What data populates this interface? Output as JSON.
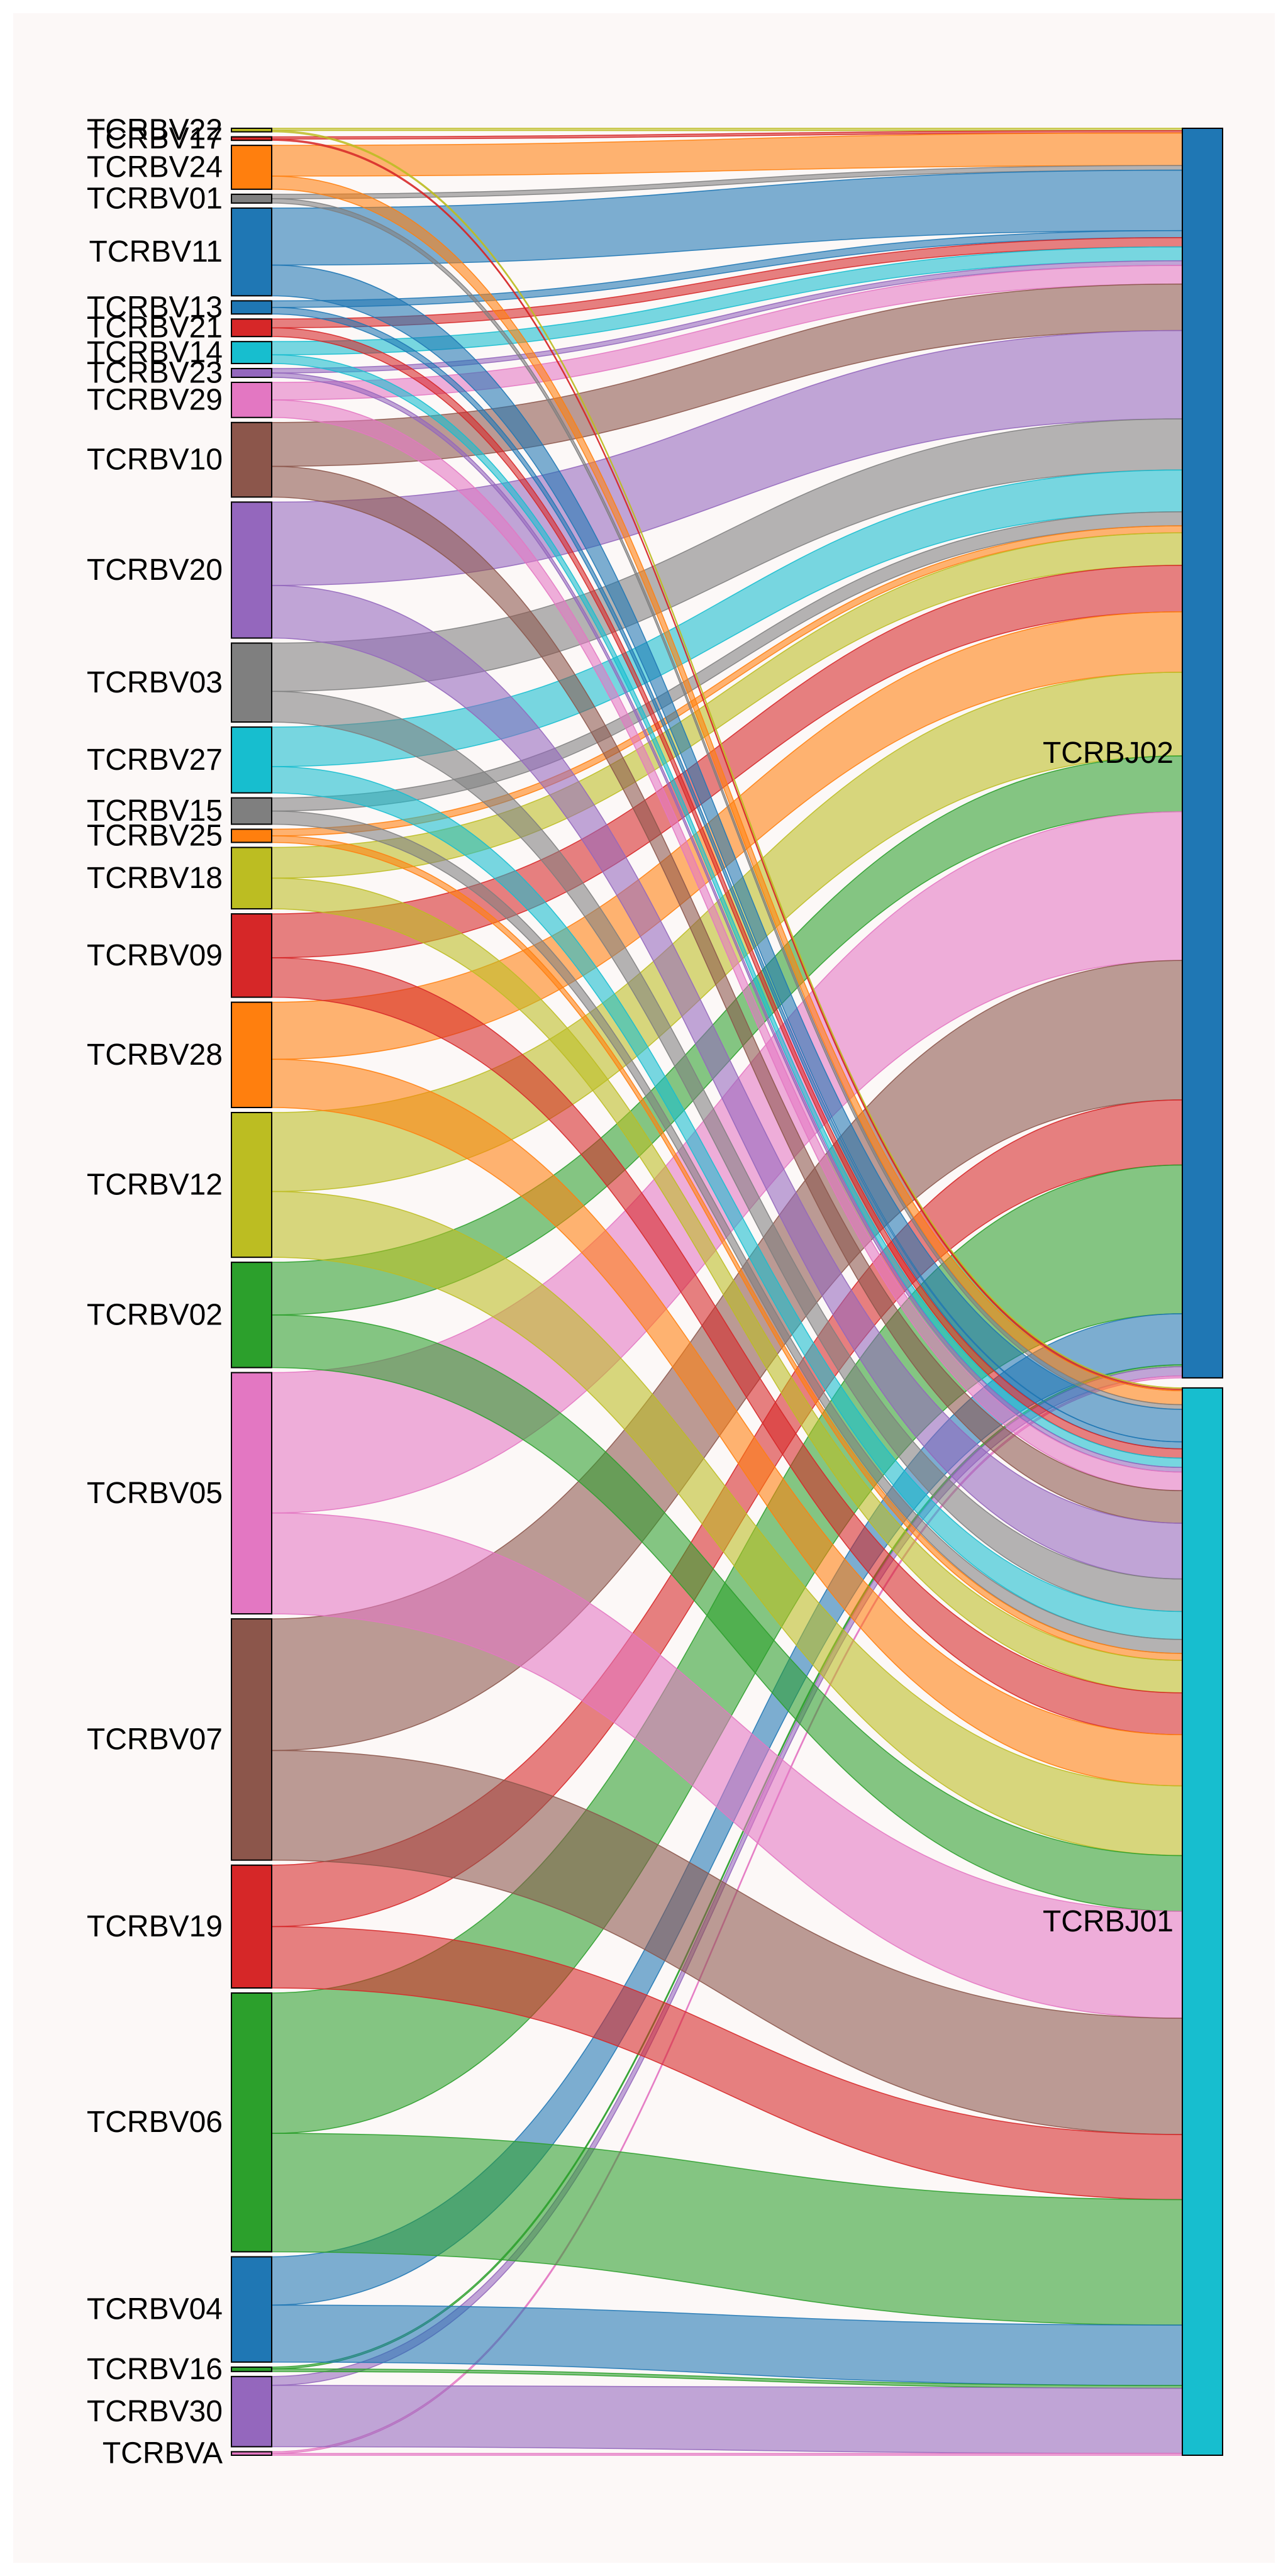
{
  "diagram": {
    "type": "sankey",
    "background": "#fcf8f7",
    "left_nodes": [
      {
        "label": "TCRBV22",
        "color": "#bcbd22",
        "value": 0.8
      },
      {
        "label": "TCRBV17",
        "color": "#d62728",
        "value": 0.8
      },
      {
        "label": "TCRBV24",
        "color": "#ff7f0e",
        "value": 10
      },
      {
        "label": "TCRBV01",
        "color": "#7f7f7f",
        "value": 2
      },
      {
        "label": "TCRBV11",
        "color": "#1f77b4",
        "value": 20
      },
      {
        "label": "TCRBV13",
        "color": "#1f77b4",
        "value": 3
      },
      {
        "label": "TCRBV21",
        "color": "#d62728",
        "value": 4
      },
      {
        "label": "TCRBV14",
        "color": "#17becf",
        "value": 5
      },
      {
        "label": "TCRBV23",
        "color": "#9467bd",
        "value": 2
      },
      {
        "label": "TCRBV29",
        "color": "#e377c2",
        "value": 8
      },
      {
        "label": "TCRBV10",
        "color": "#8c564b",
        "value": 17
      },
      {
        "label": "TCRBV20",
        "color": "#9467bd",
        "value": 31
      },
      {
        "label": "TCRBV03",
        "color": "#7f7f7f",
        "value": 18
      },
      {
        "label": "TCRBV27",
        "color": "#17becf",
        "value": 15
      },
      {
        "label": "TCRBV15",
        "color": "#7f7f7f",
        "value": 6
      },
      {
        "label": "TCRBV25",
        "color": "#ff7f0e",
        "value": 3
      },
      {
        "label": "TCRBV18",
        "color": "#bcbd22",
        "value": 14
      },
      {
        "label": "TCRBV09",
        "color": "#d62728",
        "value": 19
      },
      {
        "label": "TCRBV28",
        "color": "#ff7f0e",
        "value": 24
      },
      {
        "label": "TCRBV12",
        "color": "#bcbd22",
        "value": 33
      },
      {
        "label": "TCRBV02",
        "color": "#2ca02c",
        "value": 24
      },
      {
        "label": "TCRBV05",
        "color": "#e377c2",
        "value": 55
      },
      {
        "label": "TCRBV07",
        "color": "#8c564b",
        "value": 55
      },
      {
        "label": "TCRBV19",
        "color": "#d62728",
        "value": 28
      },
      {
        "label": "TCRBV06",
        "color": "#2ca02c",
        "value": 59
      },
      {
        "label": "TCRBV04",
        "color": "#1f77b4",
        "value": 24
      },
      {
        "label": "TCRBV16",
        "color": "#2ca02c",
        "value": 1
      },
      {
        "label": "TCRBV30",
        "color": "#9467bd",
        "value": 16
      },
      {
        "label": "TCRBVA",
        "color": "#e377c2",
        "value": 0.8
      }
    ],
    "right_nodes": [
      {
        "label": "TCRBJ02",
        "color": "#1f77b4"
      },
      {
        "label": "TCRBJ01",
        "color": "#17becf"
      }
    ],
    "links": [
      {
        "source": "TCRBV22",
        "target": "TCRBJ02",
        "value": 0.5
      },
      {
        "source": "TCRBV17",
        "target": "TCRBJ02",
        "value": 0.5
      },
      {
        "source": "TCRBV24",
        "target": "TCRBJ02",
        "value": 7
      },
      {
        "source": "TCRBV01",
        "target": "TCRBJ02",
        "value": 1
      },
      {
        "source": "TCRBV11",
        "target": "TCRBJ02",
        "value": 13
      },
      {
        "source": "TCRBV13",
        "target": "TCRBJ02",
        "value": 1.5
      },
      {
        "source": "TCRBV21",
        "target": "TCRBJ02",
        "value": 2
      },
      {
        "source": "TCRBV14",
        "target": "TCRBJ02",
        "value": 3
      },
      {
        "source": "TCRBV23",
        "target": "TCRBJ02",
        "value": 1
      },
      {
        "source": "TCRBV29",
        "target": "TCRBJ02",
        "value": 4
      },
      {
        "source": "TCRBV10",
        "target": "TCRBJ02",
        "value": 10
      },
      {
        "source": "TCRBV20",
        "target": "TCRBJ02",
        "value": 19
      },
      {
        "source": "TCRBV03",
        "target": "TCRBJ02",
        "value": 11
      },
      {
        "source": "TCRBV27",
        "target": "TCRBJ02",
        "value": 9
      },
      {
        "source": "TCRBV15",
        "target": "TCRBJ02",
        "value": 3
      },
      {
        "source": "TCRBV25",
        "target": "TCRBJ02",
        "value": 1.5
      },
      {
        "source": "TCRBV18",
        "target": "TCRBJ02",
        "value": 7
      },
      {
        "source": "TCRBV09",
        "target": "TCRBJ02",
        "value": 10
      },
      {
        "source": "TCRBV28",
        "target": "TCRBJ02",
        "value": 13
      },
      {
        "source": "TCRBV12",
        "target": "TCRBJ02",
        "value": 18
      },
      {
        "source": "TCRBV02",
        "target": "TCRBJ02",
        "value": 12
      },
      {
        "source": "TCRBV05",
        "target": "TCRBJ02",
        "value": 32
      },
      {
        "source": "TCRBV07",
        "target": "TCRBJ02",
        "value": 30
      },
      {
        "source": "TCRBV19",
        "target": "TCRBJ02",
        "value": 14
      },
      {
        "source": "TCRBV06",
        "target": "TCRBJ02",
        "value": 32
      },
      {
        "source": "TCRBV04",
        "target": "TCRBJ02",
        "value": 11
      },
      {
        "source": "TCRBV16",
        "target": "TCRBJ02",
        "value": 0.4
      },
      {
        "source": "TCRBV30",
        "target": "TCRBJ02",
        "value": 2
      },
      {
        "source": "TCRBVA",
        "target": "TCRBJ02",
        "value": 0.4
      },
      {
        "source": "TCRBV22",
        "target": "TCRBJ01",
        "value": 0.3
      },
      {
        "source": "TCRBV17",
        "target": "TCRBJ01",
        "value": 0.3
      },
      {
        "source": "TCRBV24",
        "target": "TCRBJ01",
        "value": 3
      },
      {
        "source": "TCRBV01",
        "target": "TCRBJ01",
        "value": 1
      },
      {
        "source": "TCRBV11",
        "target": "TCRBJ01",
        "value": 7
      },
      {
        "source": "TCRBV13",
        "target": "TCRBJ01",
        "value": 1.5
      },
      {
        "source": "TCRBV21",
        "target": "TCRBJ01",
        "value": 2
      },
      {
        "source": "TCRBV14",
        "target": "TCRBJ01",
        "value": 2
      },
      {
        "source": "TCRBV23",
        "target": "TCRBJ01",
        "value": 1
      },
      {
        "source": "TCRBV29",
        "target": "TCRBJ01",
        "value": 4
      },
      {
        "source": "TCRBV10",
        "target": "TCRBJ01",
        "value": 7
      },
      {
        "source": "TCRBV20",
        "target": "TCRBJ01",
        "value": 12
      },
      {
        "source": "TCRBV03",
        "target": "TCRBJ01",
        "value": 7
      },
      {
        "source": "TCRBV27",
        "target": "TCRBJ01",
        "value": 6
      },
      {
        "source": "TCRBV15",
        "target": "TCRBJ01",
        "value": 3
      },
      {
        "source": "TCRBV25",
        "target": "TCRBJ01",
        "value": 1.5
      },
      {
        "source": "TCRBV18",
        "target": "TCRBJ01",
        "value": 7
      },
      {
        "source": "TCRBV09",
        "target": "TCRBJ01",
        "value": 9
      },
      {
        "source": "TCRBV28",
        "target": "TCRBJ01",
        "value": 11
      },
      {
        "source": "TCRBV12",
        "target": "TCRBJ01",
        "value": 15
      },
      {
        "source": "TCRBV02",
        "target": "TCRBJ01",
        "value": 12
      },
      {
        "source": "TCRBV05",
        "target": "TCRBJ01",
        "value": 23
      },
      {
        "source": "TCRBV07",
        "target": "TCRBJ01",
        "value": 25
      },
      {
        "source": "TCRBV19",
        "target": "TCRBJ01",
        "value": 14
      },
      {
        "source": "TCRBV06",
        "target": "TCRBJ01",
        "value": 27
      },
      {
        "source": "TCRBV04",
        "target": "TCRBJ01",
        "value": 13
      },
      {
        "source": "TCRBV16",
        "target": "TCRBJ01",
        "value": 0.6
      },
      {
        "source": "TCRBV30",
        "target": "TCRBJ01",
        "value": 14
      },
      {
        "source": "TCRBVA",
        "target": "TCRBJ01",
        "value": 0.4
      }
    ]
  }
}
